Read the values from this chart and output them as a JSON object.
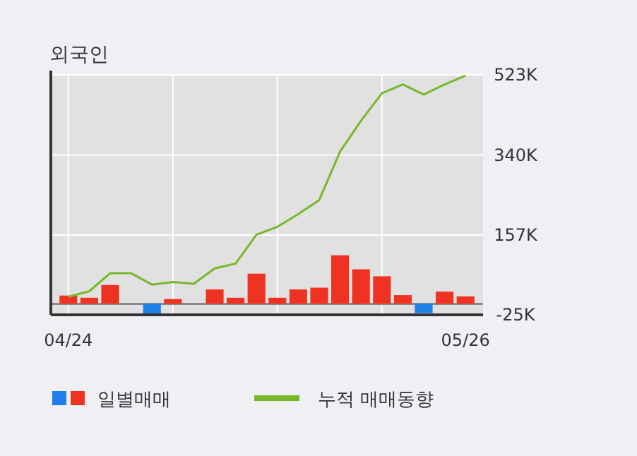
{
  "chart_data": {
    "type": "bar",
    "title": "외국인",
    "categories": [
      "04/24",
      null,
      null,
      null,
      null,
      null,
      null,
      null,
      null,
      null,
      null,
      null,
      null,
      null,
      null,
      null,
      null,
      null,
      null,
      "05/26"
    ],
    "series": [
      {
        "name": "일별매매",
        "values": [
          19,
          14,
          43,
          0,
          -22,
          11,
          0,
          33,
          14,
          69,
          14,
          33,
          37,
          111,
          79,
          63,
          20,
          -21,
          28,
          17
        ],
        "colors": [
          "#ee3322",
          "#ee3322",
          "#ee3322",
          "#ee3322",
          "#1f7fe8",
          "#ee3322",
          "#ee3322",
          "#ee3322",
          "#ee3322",
          "#ee3322",
          "#ee3322",
          "#ee3322",
          "#ee3322",
          "#ee3322",
          "#ee3322",
          "#ee3322",
          "#ee3322",
          "#1f7fe8",
          "#ee3322",
          "#ee3322"
        ]
      },
      {
        "name": "누적 매매동향",
        "type": "line",
        "color": "#77b82a",
        "values": [
          16,
          29,
          70,
          70,
          44,
          50,
          46,
          81,
          92,
          158,
          176,
          205,
          237,
          348,
          418,
          481,
          501,
          478,
          501,
          521
        ]
      }
    ],
    "ylim": [
      -25,
      523
    ],
    "yticks": [
      {
        "value": -25,
        "label": "-25K"
      },
      {
        "value": 157,
        "label": "157K"
      },
      {
        "value": 340,
        "label": "340K"
      },
      {
        "value": 523,
        "label": "523K"
      }
    ],
    "ref_lines": [
      {
        "axis": "y",
        "value": 0,
        "color": "#8a8a8a"
      }
    ],
    "grid": true,
    "legend": "bottom"
  }
}
